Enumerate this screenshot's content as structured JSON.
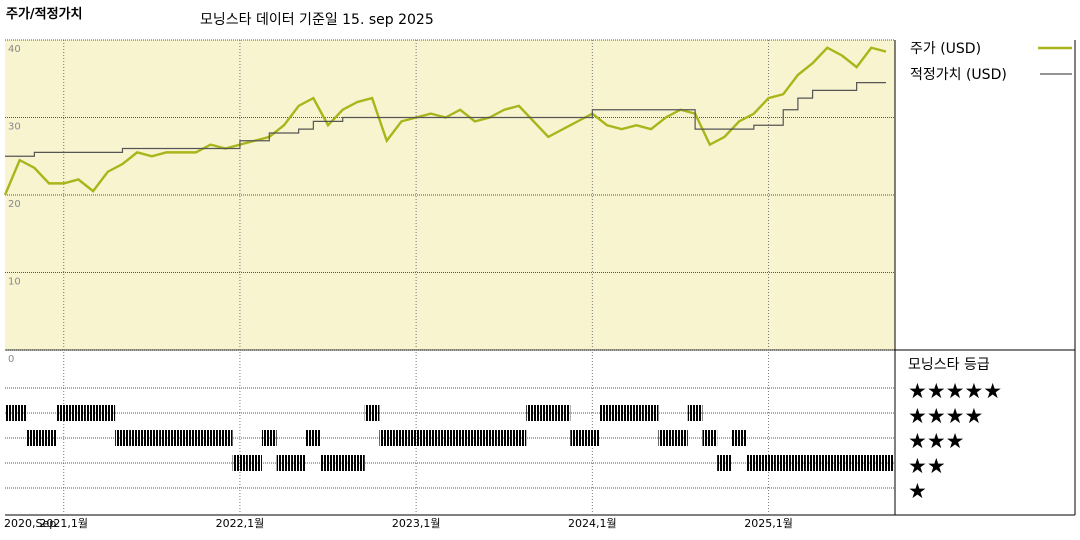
{
  "chart_data": [
    {
      "type": "line",
      "title": "주가/적정가치",
      "subtitle": "모닝스타 데이터 기준일 15. sep 2025",
      "x": [
        "2020-09",
        "2020-10",
        "2020-11",
        "2020-12",
        "2021-01",
        "2021-02",
        "2021-03",
        "2021-04",
        "2021-05",
        "2021-06",
        "2021-07",
        "2021-08",
        "2021-09",
        "2021-10",
        "2021-11",
        "2021-12",
        "2022-01",
        "2022-02",
        "2022-03",
        "2022-04",
        "2022-05",
        "2022-06",
        "2022-07",
        "2022-08",
        "2022-09",
        "2022-10",
        "2022-11",
        "2022-12",
        "2023-01",
        "2023-02",
        "2023-03",
        "2023-04",
        "2023-05",
        "2023-06",
        "2023-07",
        "2023-08",
        "2023-09",
        "2023-10",
        "2023-11",
        "2023-12",
        "2024-01",
        "2024-02",
        "2024-03",
        "2024-04",
        "2024-05",
        "2024-06",
        "2024-07",
        "2024-08",
        "2024-09",
        "2024-10",
        "2024-11",
        "2024-12",
        "2025-01",
        "2025-02",
        "2025-03",
        "2025-04",
        "2025-05",
        "2025-06",
        "2025-07",
        "2025-08",
        "2025-09"
      ],
      "series": [
        {
          "name": "주가 (USD)",
          "color": "#a9b51a",
          "step": false,
          "values": [
            20,
            24.5,
            23.5,
            21.5,
            21.5,
            22,
            20.5,
            23,
            24,
            25.5,
            25,
            25.5,
            25.5,
            25.5,
            26.5,
            26,
            26.5,
            27,
            27.5,
            29,
            31.5,
            32.5,
            29,
            31,
            32,
            32.5,
            27,
            29.5,
            30,
            30.5,
            30,
            31,
            29.5,
            30,
            31,
            31.5,
            29.5,
            27.5,
            28.5,
            29.5,
            30.5,
            29,
            28.5,
            29,
            28.5,
            30,
            31,
            30.5,
            26.5,
            27.5,
            29.5,
            30.5,
            32.5,
            33,
            35.5,
            37,
            39,
            38,
            36.5,
            39,
            38.5
          ]
        },
        {
          "name": "적정가치 (USD)",
          "color": "#555555",
          "step": true,
          "values": [
            25,
            25,
            25.5,
            25.5,
            25.5,
            25.5,
            25.5,
            25.5,
            26,
            26,
            26,
            26,
            26,
            26,
            26,
            26,
            27,
            27,
            28,
            28,
            28.5,
            29.5,
            29.5,
            30,
            30,
            30,
            30,
            30,
            30,
            30,
            30,
            30,
            30,
            30,
            30,
            30,
            30,
            30,
            30,
            30,
            31,
            31,
            31,
            31,
            31,
            31,
            31,
            28.5,
            28.5,
            28.5,
            28.5,
            29,
            29,
            31,
            32.5,
            33.5,
            33.5,
            33.5,
            34.5,
            34.5,
            34.5
          ]
        }
      ],
      "ylim": [
        0,
        40
      ],
      "yticks": [
        0,
        10,
        20,
        30,
        40
      ],
      "xticks": [
        {
          "value": "2020-09",
          "label": "2020,Sep"
        },
        {
          "value": "2021-01",
          "label": "2021,1월"
        },
        {
          "value": "2022-01",
          "label": "2022,1월"
        },
        {
          "value": "2023-01",
          "label": "2023,1월"
        },
        {
          "value": "2024-01",
          "label": "2024,1월"
        },
        {
          "value": "2025-01",
          "label": "2025,1월"
        }
      ],
      "grid": true,
      "background": "#f8f4cf"
    },
    {
      "type": "rating",
      "title": "모닝스타 등급",
      "values": [
        4,
        4,
        3,
        3,
        4,
        4,
        4,
        4,
        3,
        3,
        3,
        3,
        3,
        3,
        3,
        3,
        2,
        2,
        3,
        2,
        2,
        3,
        2,
        2,
        2,
        4,
        3,
        3,
        3,
        3,
        3,
        3,
        3,
        3,
        3,
        3,
        4,
        4,
        4,
        3,
        3,
        4,
        4,
        4,
        4,
        3,
        3,
        4,
        3,
        2,
        3,
        2,
        2,
        2,
        2,
        2,
        2,
        2,
        2,
        2,
        2
      ],
      "ylim": [
        0,
        5
      ],
      "yticks": [
        {
          "value": 5,
          "label": "★★★★★"
        },
        {
          "value": 4,
          "label": "★★★★"
        },
        {
          "value": 3,
          "label": "★★★"
        },
        {
          "value": 2,
          "label": "★★"
        },
        {
          "value": 1,
          "label": "★"
        }
      ],
      "color": "#000000"
    }
  ]
}
